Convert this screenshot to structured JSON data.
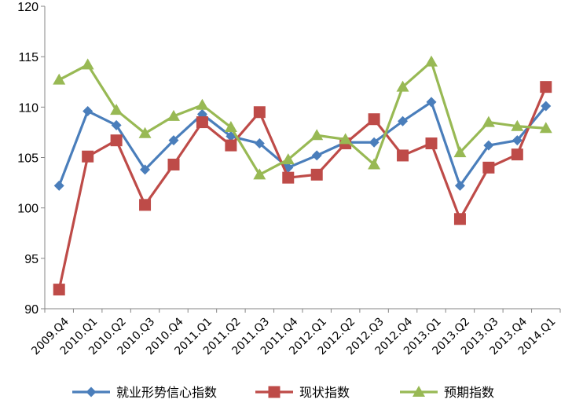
{
  "chart_data": {
    "type": "line",
    "title": "",
    "xlabel": "",
    "ylabel": "",
    "ylim": [
      90,
      120
    ],
    "yticks": [
      90,
      95,
      100,
      105,
      110,
      115,
      120
    ],
    "grid": false,
    "legend_position": "bottom",
    "categories": [
      "2009.Q4",
      "2010.Q1",
      "2010.Q2",
      "2010.Q3",
      "2010.Q4",
      "2011.Q1",
      "2011.Q2",
      "2011.Q3",
      "2011.Q4",
      "2012.Q1",
      "2012.Q2",
      "2012.Q3",
      "2012.Q4",
      "2013.Q1",
      "2013.Q2",
      "2013.Q3",
      "2013.Q4",
      "2014.Q1"
    ],
    "series": [
      {
        "name": "就业形势信心指数",
        "color": "#4a7ebb",
        "marker": "diamond",
        "values": [
          102.2,
          109.6,
          108.2,
          103.8,
          106.7,
          109.3,
          107.1,
          106.4,
          104.0,
          105.2,
          106.5,
          106.5,
          108.6,
          110.5,
          102.2,
          106.2,
          106.7,
          110.1
        ]
      },
      {
        "name": "现状指数",
        "color": "#be4b48",
        "marker": "square",
        "values": [
          91.9,
          105.1,
          106.7,
          100.3,
          104.3,
          108.5,
          106.2,
          109.5,
          103.0,
          103.3,
          106.4,
          108.8,
          105.2,
          106.4,
          98.9,
          104.0,
          105.3,
          112.0
        ]
      },
      {
        "name": "预期指数",
        "color": "#98b954",
        "marker": "triangle",
        "values": [
          112.7,
          114.2,
          109.7,
          107.4,
          109.1,
          110.2,
          108.0,
          103.3,
          104.8,
          107.2,
          106.8,
          104.3,
          112.0,
          114.5,
          105.5,
          108.5,
          108.1,
          107.9
        ]
      }
    ]
  }
}
